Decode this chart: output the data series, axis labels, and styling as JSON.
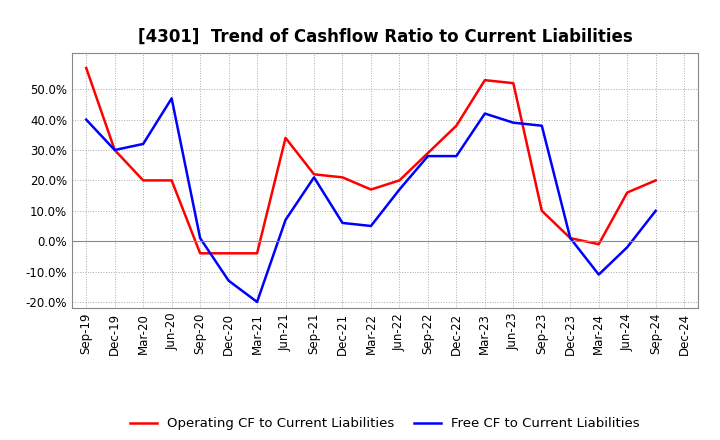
{
  "title": "[4301]  Trend of Cashflow Ratio to Current Liabilities",
  "x_labels": [
    "Sep-19",
    "Dec-19",
    "Mar-20",
    "Jun-20",
    "Sep-20",
    "Dec-20",
    "Mar-21",
    "Jun-21",
    "Sep-21",
    "Dec-21",
    "Mar-22",
    "Jun-22",
    "Sep-22",
    "Dec-22",
    "Mar-23",
    "Jun-23",
    "Sep-23",
    "Dec-23",
    "Mar-24",
    "Jun-24",
    "Sep-24",
    "Dec-24"
  ],
  "operating_cf": [
    0.57,
    0.3,
    0.2,
    0.2,
    -0.04,
    -0.04,
    -0.04,
    0.34,
    0.22,
    0.21,
    0.17,
    0.2,
    0.29,
    0.38,
    0.53,
    0.52,
    0.1,
    0.01,
    -0.01,
    0.16,
    0.2,
    null
  ],
  "free_cf": [
    0.4,
    0.3,
    0.32,
    0.47,
    0.01,
    -0.13,
    -0.2,
    0.07,
    0.21,
    0.06,
    0.05,
    0.17,
    0.28,
    0.28,
    0.42,
    0.39,
    0.38,
    0.01,
    -0.11,
    -0.02,
    0.1,
    null
  ],
  "operating_cf_color": "#ff0000",
  "free_cf_color": "#0000ff",
  "ylim": [
    -0.22,
    0.62
  ],
  "yticks": [
    -0.2,
    -0.1,
    0.0,
    0.1,
    0.2,
    0.3,
    0.4,
    0.5
  ],
  "legend_operating": "Operating CF to Current Liabilities",
  "legend_free": "Free CF to Current Liabilities",
  "bg_color": "#ffffff",
  "grid_color": "#aaaaaa",
  "title_fontsize": 12,
  "axis_fontsize": 8.5,
  "legend_fontsize": 9.5
}
